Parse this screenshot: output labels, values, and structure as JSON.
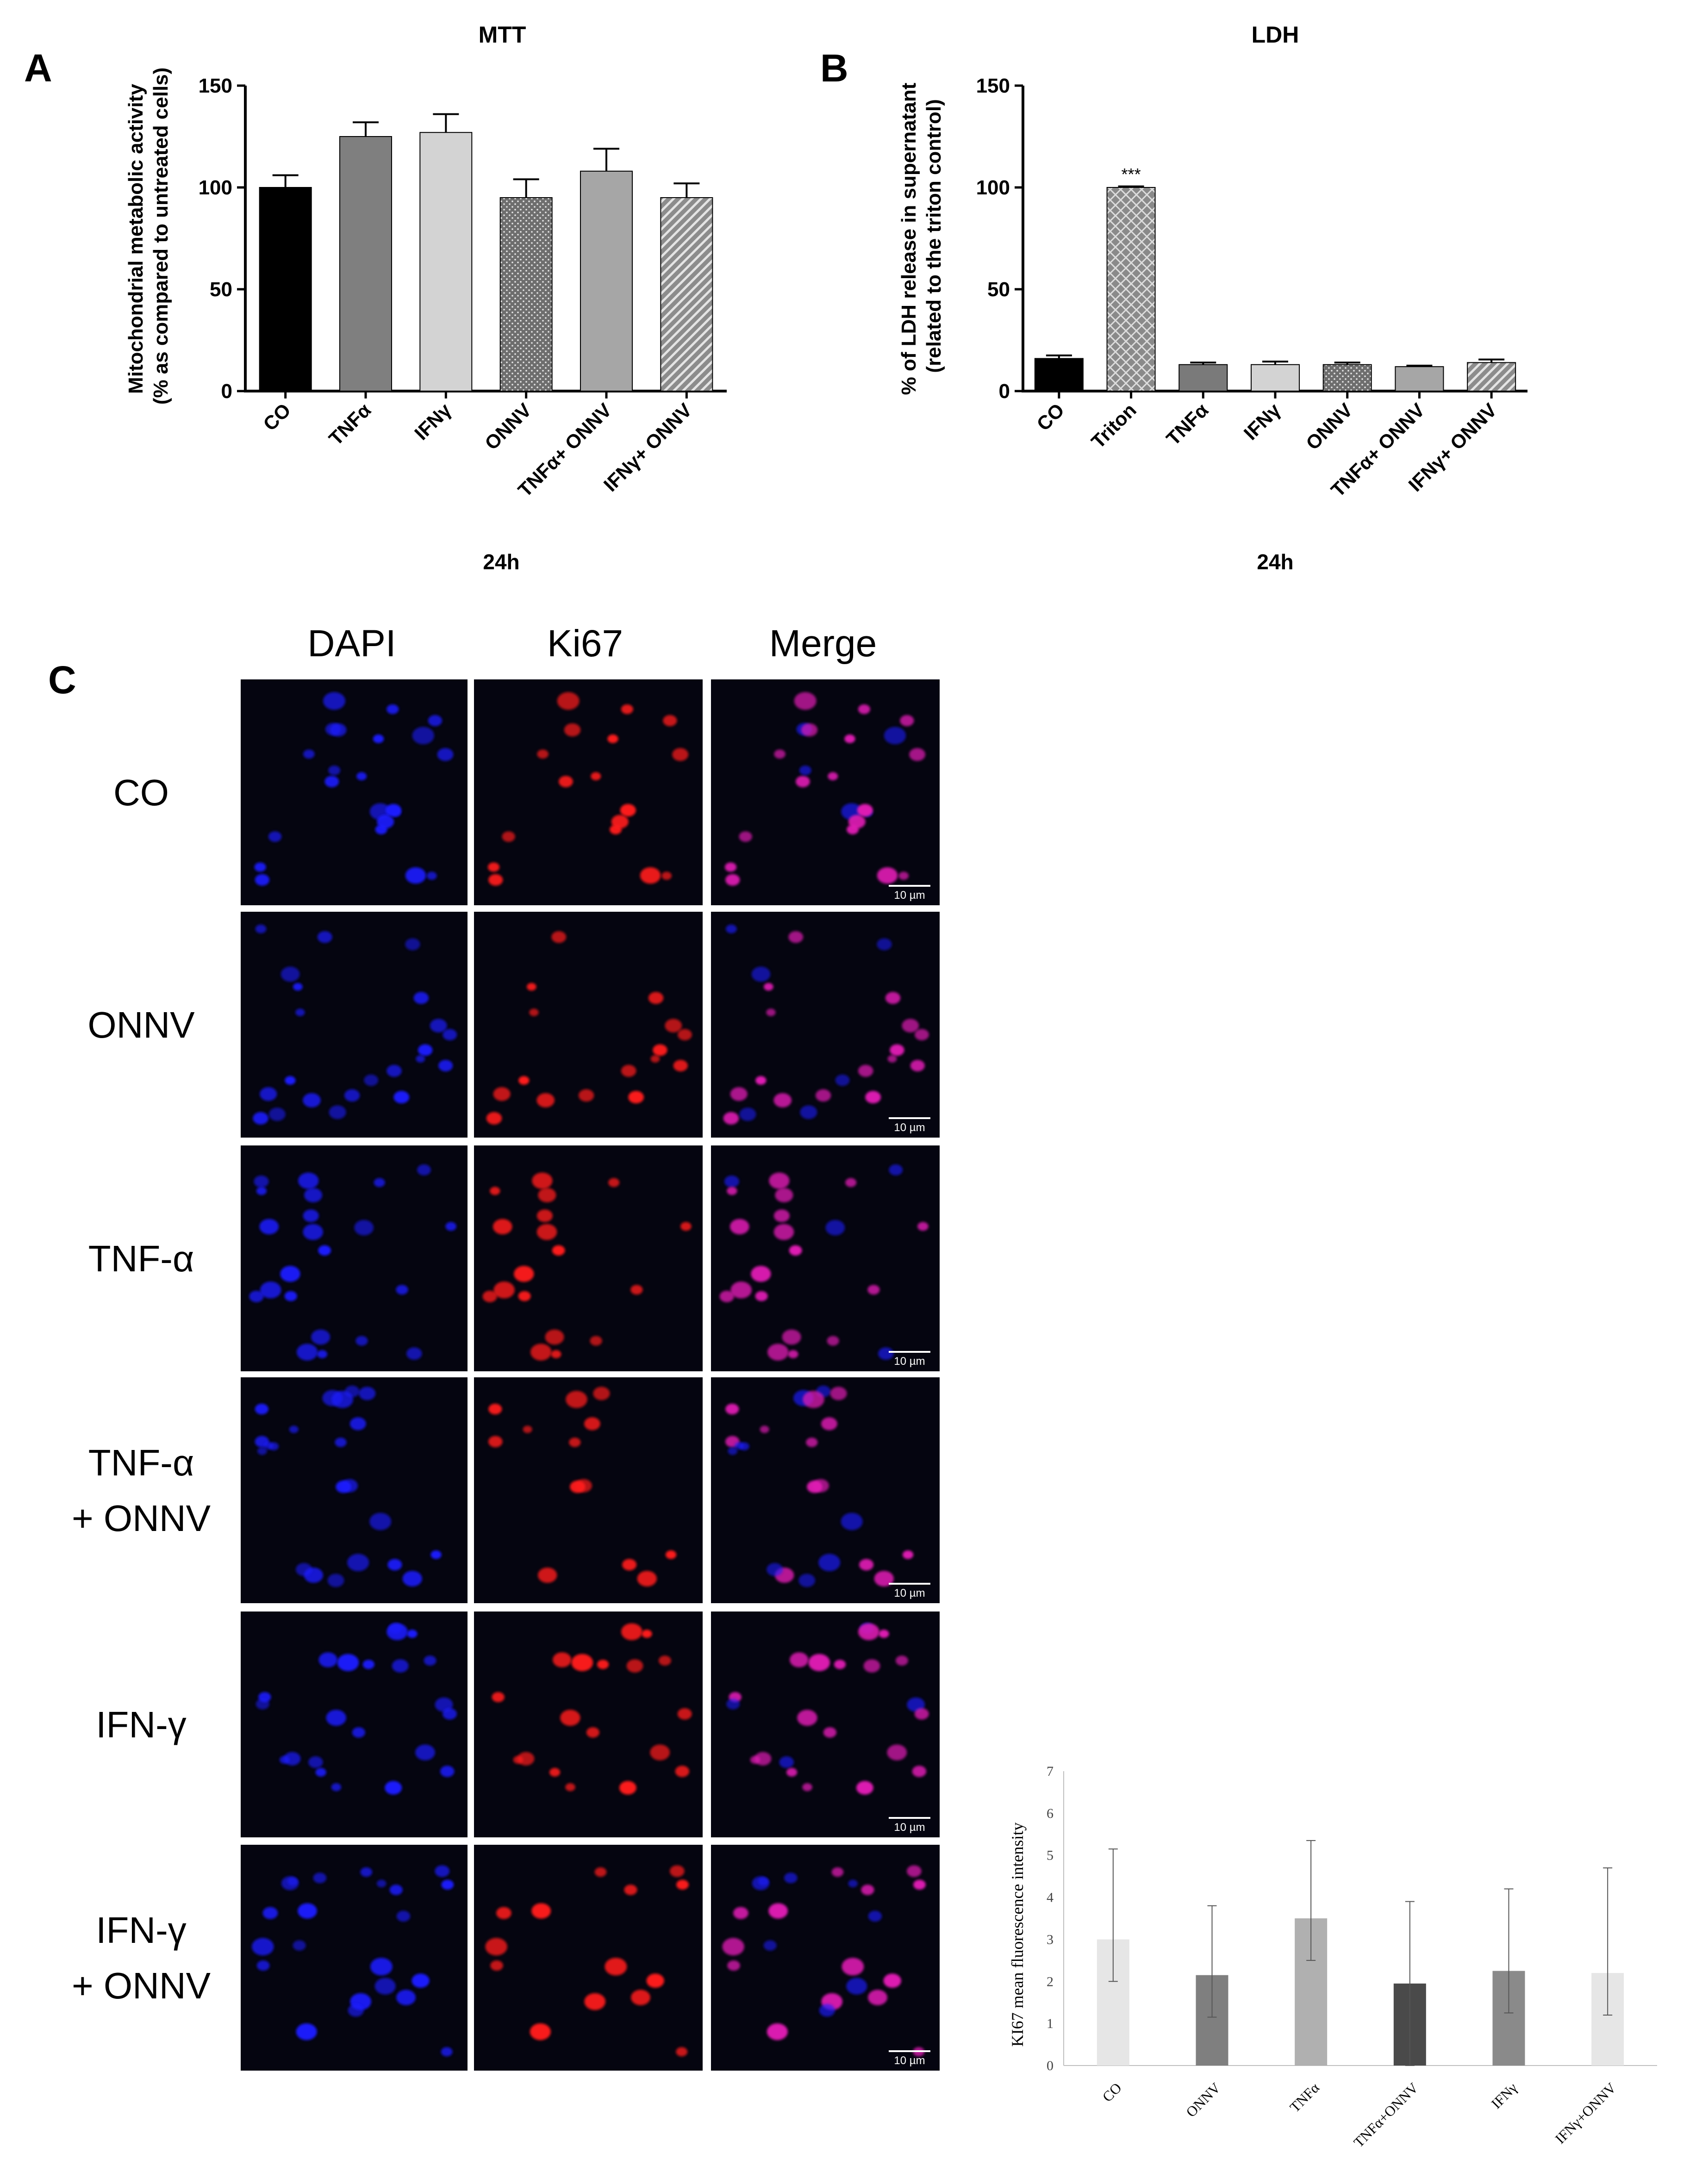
{
  "panels": {
    "a_letter": "A",
    "b_letter": "B",
    "c_letter": "C"
  },
  "colors": {
    "mtt_bars": [
      "#000000",
      "#7f7f7f",
      "#d3d3d3",
      "#6e6e6e",
      "#a6a6a6",
      "#8c8c8c"
    ],
    "ldh_bars": [
      "#000000",
      "#8a8a8a",
      "#7a7a7a",
      "#d3d3d3",
      "#6e6e6e",
      "#a6a6a6",
      "#8c8c8c"
    ],
    "ki67_bars": [
      "#e6e6e6",
      "#7f7f7f",
      "#b0b0b0",
      "#4a4a4a",
      "#8a8a8a",
      "#e6e6e6"
    ],
    "dapi": "#1a1aff",
    "ki67_stain": "#ff1a1a",
    "merge": "#e01fb4"
  },
  "microscopy": {
    "columns": [
      "DAPI",
      "Ki67",
      "Merge"
    ],
    "rows": [
      {
        "lines": [
          "CO"
        ]
      },
      {
        "lines": [
          "ONNV"
        ]
      },
      {
        "lines": [
          "TNF-α"
        ]
      },
      {
        "lines": [
          "TNF-α",
          "+ ONNV"
        ]
      },
      {
        "lines": [
          "IFN-γ"
        ]
      },
      {
        "lines": [
          "IFN-γ",
          "+ ONNV"
        ]
      }
    ],
    "scale_bar": "10 µm"
  },
  "chart_data": [
    {
      "type": "bar",
      "title": "MTT",
      "ylabel_lines": [
        "Mitochondrial metabolic activity",
        "(% as compared to untreated cells)"
      ],
      "xlabel": "24h",
      "categories": [
        "CO",
        "TNFα",
        "IFNγ",
        "ONNV",
        "TNFα+ ONNV",
        "IFNγ+ ONNV"
      ],
      "values": [
        100,
        125,
        127,
        95,
        108,
        95
      ],
      "error_upper": [
        6,
        7,
        9,
        9,
        11,
        7
      ],
      "ylim": [
        0,
        150
      ],
      "yticks": [
        0,
        50,
        100,
        150
      ],
      "bar_patterns": [
        "solid",
        "solid",
        "solid",
        "dots",
        "solid",
        "hatch"
      ]
    },
    {
      "type": "bar",
      "title": "LDH",
      "ylabel_lines": [
        "% of LDH release in supernatant",
        "(related to the triton control)"
      ],
      "xlabel": "24h",
      "categories": [
        "CO",
        "Triton",
        "TNFα",
        "IFNγ",
        "ONNV",
        "TNFα+ ONNV",
        "IFNγ+ ONNV"
      ],
      "values": [
        16,
        100,
        13,
        13,
        13,
        12,
        14
      ],
      "error_upper": [
        1.5,
        0.5,
        1,
        1.5,
        1,
        0.5,
        1.5
      ],
      "annotations": [
        {
          "category": "Triton",
          "text": "***"
        }
      ],
      "ylim": [
        0,
        150
      ],
      "yticks": [
        0,
        50,
        100,
        150
      ],
      "bar_patterns": [
        "solid",
        "crosshatch",
        "solid",
        "solid",
        "dots",
        "solid",
        "hatch"
      ]
    },
    {
      "type": "bar",
      "ylabel": "KI67 mean fluorescence intensity",
      "categories": [
        "CO",
        "ONNV",
        "TNFα",
        "TNFα+ONNV",
        "IFNγ",
        "IFNγ+ONNV"
      ],
      "values": [
        3.0,
        2.15,
        3.5,
        1.95,
        2.25,
        2.2
      ],
      "error_low": [
        2.0,
        1.15,
        2.5,
        0.0,
        1.25,
        1.2
      ],
      "error_high": [
        5.15,
        3.8,
        5.35,
        3.9,
        4.2,
        4.7
      ],
      "ylim": [
        0,
        7
      ],
      "yticks": [
        0,
        1,
        2,
        3,
        4,
        5,
        6,
        7
      ]
    }
  ]
}
